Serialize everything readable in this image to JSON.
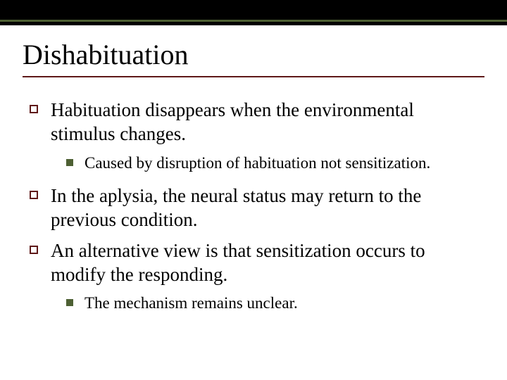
{
  "colors": {
    "top_bar": "#000000",
    "accent_green": "#4d6033",
    "accent_maroon": "#5f1919",
    "background": "#ffffff",
    "text": "#000000"
  },
  "title": "Dishabituation",
  "bullets": [
    {
      "text": "Habituation disappears when the environmental stimulus changes.",
      "sub": [
        {
          "text": "Caused by disruption of habituation not sensitization."
        }
      ]
    },
    {
      "text": "In the aplysia, the neural status may return to the previous condition.",
      "sub": []
    },
    {
      "text": "An alternative view is that sensitization occurs to modify the responding.",
      "sub": [
        {
          "text": "The mechanism remains unclear."
        }
      ]
    }
  ]
}
